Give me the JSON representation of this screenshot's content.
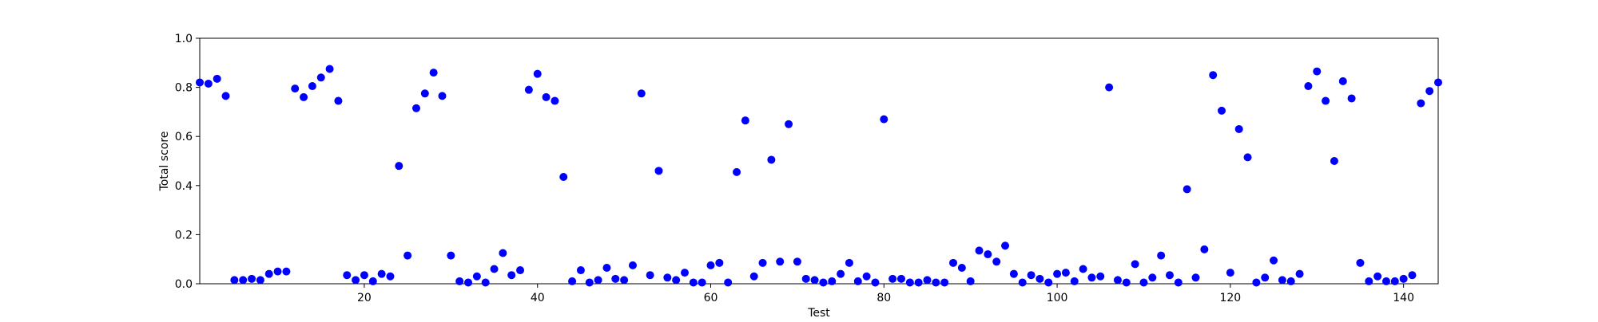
{
  "chart_data": {
    "type": "scatter",
    "title": "",
    "xlabel": "Test",
    "ylabel": "Total score",
    "xlim": [
      1,
      144
    ],
    "ylim": [
      0,
      1.0
    ],
    "x_ticks": [
      20,
      40,
      60,
      80,
      100,
      120,
      140
    ],
    "x_tick_labels": [
      "20",
      "40",
      "60",
      "80",
      "100",
      "120",
      "140"
    ],
    "y_ticks": [
      0.0,
      0.2,
      0.4,
      0.6,
      0.8,
      1.0
    ],
    "y_tick_labels": [
      "0.0",
      "0.2",
      "0.4",
      "0.6",
      "0.8",
      "1.0"
    ],
    "grid": false,
    "marker_color": "#0000ff",
    "series": [
      {
        "x": [
          1,
          2,
          3,
          4,
          5,
          6,
          7,
          8,
          9,
          10,
          11,
          12,
          13,
          14,
          15,
          16,
          17,
          18,
          19,
          20,
          21,
          22,
          23,
          24,
          25,
          26,
          27,
          28,
          29,
          30,
          31,
          32,
          33,
          34,
          35,
          36,
          37,
          38,
          39,
          40,
          41,
          42,
          43,
          44,
          45,
          46,
          47,
          48,
          49,
          50,
          51,
          52,
          53,
          54,
          55,
          56,
          57,
          58,
          59,
          60,
          61,
          62,
          63,
          64,
          65,
          66,
          67,
          68,
          69,
          70,
          71,
          72,
          73,
          74,
          75,
          76,
          77,
          78,
          79,
          80,
          81,
          82,
          83,
          84,
          85,
          86,
          87,
          88,
          89,
          90,
          91,
          92,
          93,
          94,
          95,
          96,
          97,
          98,
          99,
          100,
          101,
          102,
          103,
          104,
          105,
          106,
          107,
          108,
          109,
          110,
          111,
          112,
          113,
          114,
          115,
          116,
          117,
          118,
          119,
          120,
          121,
          122,
          123,
          124,
          125,
          126,
          127,
          128,
          129,
          130,
          131,
          132,
          133,
          134,
          135,
          136,
          137,
          138,
          139,
          140,
          141,
          142,
          143,
          144
        ],
        "y": [
          0.82,
          0.815,
          0.835,
          0.765,
          0.015,
          0.015,
          0.02,
          0.015,
          0.04,
          0.05,
          0.05,
          0.795,
          0.76,
          0.805,
          0.84,
          0.875,
          0.745,
          0.035,
          0.015,
          0.035,
          0.01,
          0.04,
          0.03,
          0.48,
          0.115,
          0.715,
          0.775,
          0.86,
          0.765,
          0.115,
          0.01,
          0.005,
          0.03,
          0.005,
          0.06,
          0.125,
          0.035,
          0.055,
          0.79,
          0.855,
          0.76,
          0.745,
          0.435,
          0.01,
          0.055,
          0.005,
          0.015,
          0.065,
          0.02,
          0.015,
          0.075,
          0.775,
          0.035,
          0.46,
          0.025,
          0.015,
          0.045,
          0.005,
          0.005,
          0.075,
          0.085,
          0.005,
          0.455,
          0.665,
          0.03,
          0.085,
          0.505,
          0.09,
          0.65,
          0.09,
          0.02,
          0.015,
          0.005,
          0.01,
          0.04,
          0.085,
          0.01,
          0.03,
          0.005,
          0.67,
          0.02,
          0.02,
          0.005,
          0.005,
          0.015,
          0.005,
          0.005,
          0.085,
          0.065,
          0.01,
          0.135,
          0.12,
          0.09,
          0.155,
          0.04,
          0.005,
          0.035,
          0.02,
          0.005,
          0.04,
          0.045,
          0.01,
          0.06,
          0.025,
          0.03,
          0.8,
          0.015,
          0.005,
          0.08,
          0.005,
          0.025,
          0.115,
          0.035,
          0.005,
          0.385,
          0.025,
          0.14,
          0.85,
          0.705,
          0.045,
          0.63,
          0.515,
          0.005,
          0.025,
          0.095,
          0.015,
          0.01,
          0.04,
          0.805,
          0.865,
          0.745,
          0.5,
          0.825,
          0.755,
          0.085,
          0.01,
          0.03,
          0.01,
          0.01,
          0.02,
          0.035,
          0.735,
          0.785,
          0.82
        ]
      }
    ]
  }
}
